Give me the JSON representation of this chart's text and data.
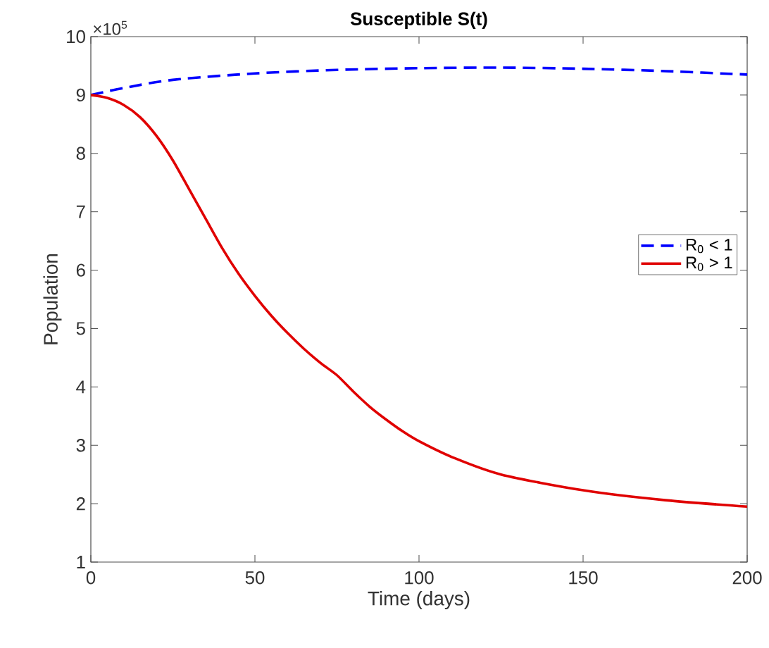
{
  "chart_data": {
    "type": "line",
    "title": "Susceptible S(t)",
    "xlabel": "Time (days)",
    "ylabel": "Population",
    "annotations": [
      "×10$^{5}$"
    ],
    "xlim": [
      0,
      200
    ],
    "xticks": [
      0,
      50,
      100,
      150,
      200
    ],
    "ylim": [
      1,
      10
    ],
    "yticks": [
      1,
      2,
      3,
      4,
      5,
      6,
      7,
      8,
      9,
      10
    ],
    "grid": false,
    "legend": "right",
    "marker": "none",
    "series": [
      {
        "name": "R$_{0}$ < 1",
        "color": "#0000ff",
        "line_style": "dashed",
        "x": [
          0,
          10,
          25,
          50,
          75,
          100,
          125,
          150,
          175,
          200
        ],
        "values": [
          9.0,
          9.12,
          9.26,
          9.37,
          9.43,
          9.46,
          9.47,
          9.45,
          9.41,
          9.35
        ]
      },
      {
        "name": "R$_{0}$ > 1",
        "color": "#e00000",
        "line_style": "solid",
        "x": [
          0,
          5,
          10,
          15,
          20,
          25,
          30,
          35,
          40,
          45,
          50,
          55,
          60,
          65,
          70,
          75,
          80,
          85,
          90,
          95,
          100,
          110,
          125,
          150,
          175,
          200
        ],
        "values": [
          9.0,
          8.95,
          8.83,
          8.62,
          8.3,
          7.88,
          7.38,
          6.88,
          6.38,
          5.94,
          5.56,
          5.22,
          4.92,
          4.65,
          4.41,
          4.2,
          3.92,
          3.66,
          3.44,
          3.24,
          3.07,
          2.8,
          2.5,
          2.23,
          2.06,
          1.95
        ]
      }
    ]
  }
}
